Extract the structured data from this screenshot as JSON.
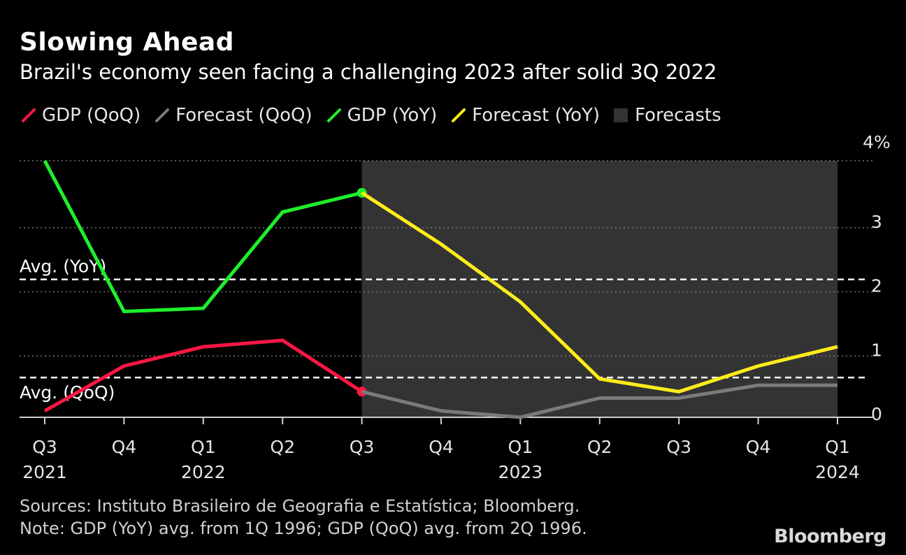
{
  "header": {
    "title": "Slowing Ahead",
    "subtitle": "Brazil's economy seen facing a challenging 2023 after solid 3Q 2022"
  },
  "legend": [
    {
      "label": "GDP (QoQ)",
      "color": "#ff1744",
      "kind": "line"
    },
    {
      "label": "Forecast (QoQ)",
      "color": "#7a7a7a",
      "kind": "line"
    },
    {
      "label": "GDP (YoY)",
      "color": "#1ef02a",
      "kind": "line"
    },
    {
      "label": "Forecast (YoY)",
      "color": "#ffec1a",
      "kind": "line"
    },
    {
      "label": "Forecasts",
      "color": "#333333",
      "kind": "box"
    }
  ],
  "chart_data": {
    "type": "line",
    "categories": [
      "Q3",
      "Q4",
      "Q1",
      "Q2",
      "Q3",
      "Q4",
      "Q1",
      "Q2",
      "Q3",
      "Q4",
      "Q1"
    ],
    "year_labels": [
      "2021",
      "",
      "2022",
      "",
      "",
      "",
      "2023",
      "",
      "",
      "",
      "2024"
    ],
    "ylim": [
      0,
      4
    ],
    "y_ticks": [
      "4%",
      "3",
      "2",
      "1",
      "0"
    ],
    "y_tick_values": [
      4,
      3,
      2,
      1,
      0
    ],
    "grid": "dotted horizontal",
    "forecast_region": {
      "from_index": 4,
      "to_index": 10
    },
    "series": [
      {
        "name": "GDP (QoQ)",
        "color": "#ff1744",
        "points": [
          [
            0,
            0.1
          ],
          [
            1,
            0.8
          ],
          [
            2,
            1.1
          ],
          [
            3,
            1.2
          ],
          [
            4,
            0.4
          ]
        ],
        "end_marker": true
      },
      {
        "name": "Forecast (QoQ)",
        "color": "#7a7a7a",
        "points": [
          [
            4,
            0.4
          ],
          [
            5,
            0.1
          ],
          [
            6,
            0.0
          ],
          [
            7,
            0.3
          ],
          [
            8,
            0.3
          ],
          [
            9,
            0.5
          ],
          [
            10,
            0.5
          ]
        ]
      },
      {
        "name": "GDP (YoY)",
        "color": "#1ef02a",
        "points": [
          [
            0,
            4.0
          ],
          [
            1,
            1.65
          ],
          [
            2,
            1.7
          ],
          [
            3,
            3.2
          ],
          [
            4,
            3.5
          ]
        ],
        "end_marker": true
      },
      {
        "name": "Forecast (YoY)",
        "color": "#ffec1a",
        "points": [
          [
            4,
            3.5
          ],
          [
            5,
            2.7
          ],
          [
            6,
            1.8
          ],
          [
            7,
            0.6
          ],
          [
            8,
            0.4
          ],
          [
            9,
            0.8
          ],
          [
            10,
            1.1
          ]
        ]
      }
    ],
    "reference_lines": [
      {
        "label": "Avg. (YoY)",
        "value": 2.15
      },
      {
        "label": "Avg. (QoQ)",
        "value": 0.62
      }
    ]
  },
  "footer": {
    "sources": "Sources: Instituto Brasileiro de Geografia e Estatística; Bloomberg.",
    "note": "Note: GDP (YoY) avg. from 1Q 1996; GDP (QoQ) avg. from 2Q 1996."
  },
  "brand": "Bloomberg"
}
